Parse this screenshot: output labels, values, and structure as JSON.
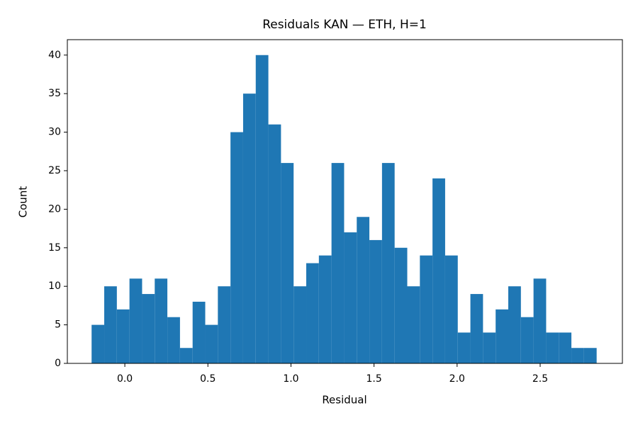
{
  "chart_data": {
    "type": "histogram",
    "title": "Residuals KAN — ETH, H=1",
    "x_label": "Residual",
    "y_label": "Count",
    "color": "#1f77b4",
    "bins": [
      -0.2,
      -0.124,
      -0.048,
      0.028,
      0.104,
      0.18,
      0.256,
      0.332,
      0.408,
      0.484,
      0.56,
      0.636,
      0.712,
      0.788,
      0.864,
      0.94,
      1.016,
      1.092,
      1.168,
      1.244,
      1.32,
      1.396,
      1.472,
      1.548,
      1.624,
      1.7,
      1.776,
      1.852,
      1.928,
      2.004,
      2.08,
      2.156,
      2.232,
      2.308,
      2.384,
      2.46,
      2.536,
      2.612,
      2.688,
      2.764,
      2.84
    ],
    "values": [
      5,
      10,
      7,
      11,
      9,
      11,
      6,
      2,
      8,
      5,
      10,
      30,
      35,
      40,
      31,
      26,
      10,
      13,
      14,
      26,
      17,
      19,
      16,
      26,
      15,
      10,
      14,
      24,
      14,
      4,
      9,
      4,
      7,
      10,
      6,
      11,
      4,
      4,
      2,
      2
    ],
    "xlim": [
      -0.346,
      2.995
    ],
    "ylim": [
      0,
      42
    ],
    "xticks": [
      {
        "value": 0,
        "label": "0.0"
      },
      0.5,
      {
        "value": 1,
        "label": "1.0"
      },
      1.5,
      {
        "value": 2,
        "label": "2.0"
      },
      2.5
    ],
    "yticks": [
      0,
      5,
      10,
      15,
      20,
      25,
      30,
      35,
      40
    ],
    "grid": false
  }
}
